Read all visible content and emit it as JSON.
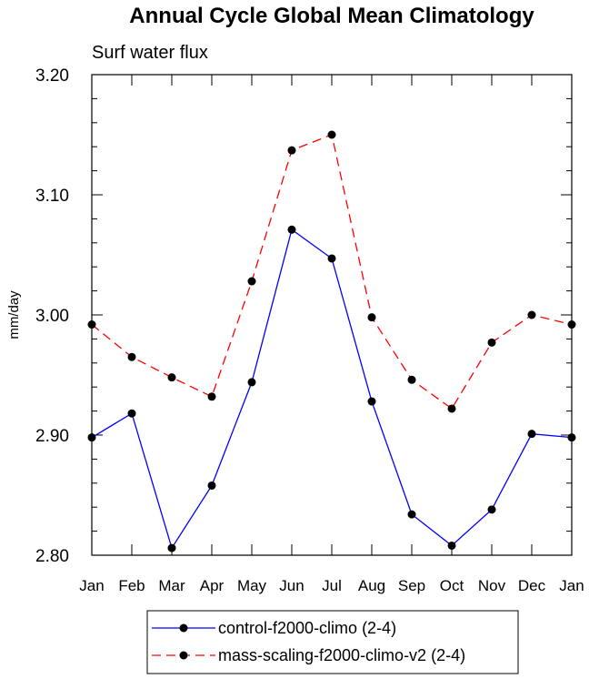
{
  "chart_data": {
    "type": "line",
    "title": "Annual Cycle Global Mean Climatology",
    "subtitle": "Surf water flux",
    "ylabel": "mm/day",
    "xlabel": "",
    "categories": [
      "Jan",
      "Feb",
      "Mar",
      "Apr",
      "May",
      "Jun",
      "Jul",
      "Aug",
      "Sep",
      "Oct",
      "Nov",
      "Dec",
      "Jan"
    ],
    "ylim": [
      2.8,
      3.2
    ],
    "yticks": [
      2.8,
      2.9,
      3.0,
      3.1,
      3.2
    ],
    "ytick_labels": [
      "2.80",
      "2.90",
      "3.00",
      "3.10",
      "3.20"
    ],
    "series": [
      {
        "name": "control-f2000-climo (2-4)",
        "color": "#0000ff",
        "style": "solid",
        "values": [
          2.898,
          2.918,
          2.806,
          2.858,
          2.944,
          3.071,
          3.047,
          2.928,
          2.834,
          2.808,
          2.838,
          2.901,
          2.898
        ]
      },
      {
        "name": "mass-scaling-f2000-climo-v2 (2-4)",
        "color": "#ff0000",
        "style": "dashed",
        "values": [
          2.992,
          2.965,
          2.948,
          2.932,
          3.028,
          3.137,
          3.15,
          2.998,
          2.946,
          2.922,
          2.977,
          3.0,
          2.992
        ]
      }
    ],
    "legend_position": "bottom-center"
  }
}
